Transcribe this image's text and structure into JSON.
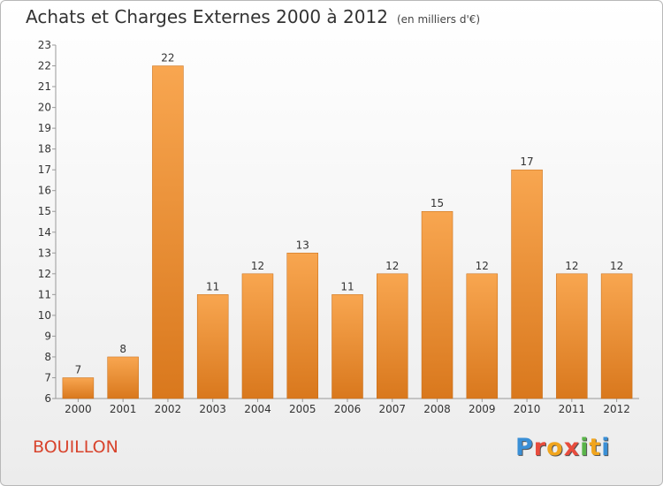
{
  "chart_data": {
    "type": "bar",
    "title": "Achats et Charges Externes 2000 à 2012",
    "subtitle": "(en milliers d'€)",
    "categories": [
      "2000",
      "2001",
      "2002",
      "2003",
      "2004",
      "2005",
      "2006",
      "2007",
      "2008",
      "2009",
      "2010",
      "2011",
      "2012"
    ],
    "values": [
      7,
      8,
      22,
      11,
      12,
      13,
      11,
      12,
      15,
      12,
      17,
      12,
      12
    ],
    "ylim": [
      6,
      23
    ],
    "yticks": [
      6,
      7,
      8,
      9,
      10,
      11,
      12,
      13,
      14,
      15,
      16,
      17,
      18,
      19,
      20,
      21,
      22,
      23
    ],
    "grid": false,
    "bar_color": "#f39a3d"
  },
  "footer": {
    "town": "BOUILLON",
    "logo_letters": [
      "P",
      "r",
      "o",
      "x",
      "i",
      "t",
      "i"
    ],
    "logo_colors": [
      "#3a8fd6",
      "#e84c3d",
      "#f1a51d",
      "#e84c3d",
      "#5ab44a",
      "#f1a51d",
      "#3a8fd6"
    ]
  }
}
